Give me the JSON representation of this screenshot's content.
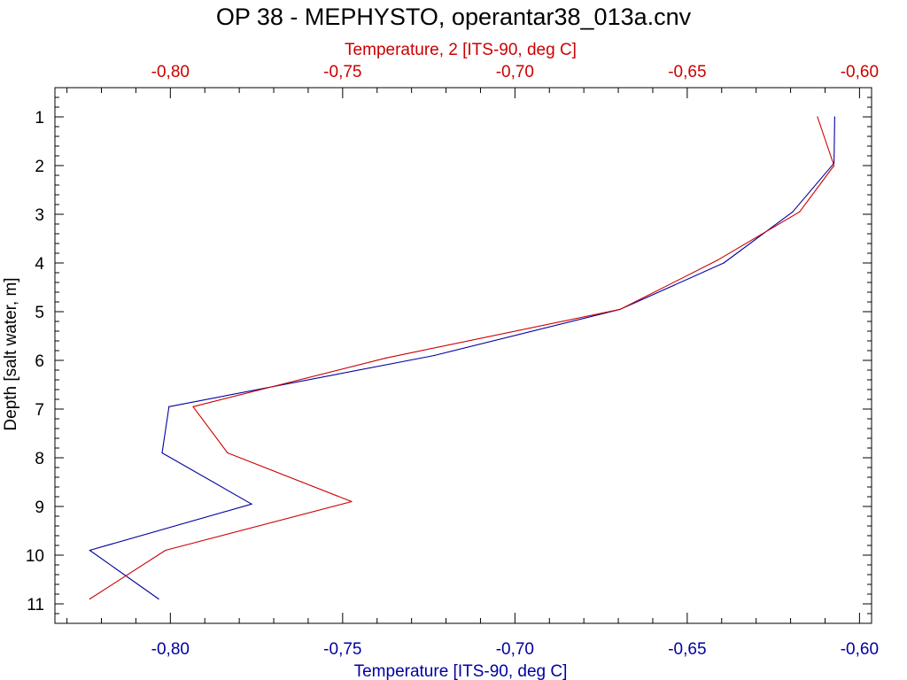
{
  "chart_data": {
    "type": "line",
    "title": "OP 38 - MEPHYSTO, operantar38_013a.cnv",
    "ylabel": "Depth [salt water, m]",
    "y_inverted": true,
    "ylim": [
      0.4,
      11.4
    ],
    "y_ticks": [
      1,
      2,
      3,
      4,
      5,
      6,
      7,
      8,
      9,
      10,
      11
    ],
    "x_bottom": {
      "label": "Temperature [ITS-90, deg C]",
      "color": "#0000a0",
      "lim": [
        -0.8335,
        -0.5965
      ],
      "ticks": [
        -0.8,
        -0.75,
        -0.7,
        -0.65,
        -0.6
      ],
      "tick_labels": [
        "-0,80",
        "-0,75",
        "-0,70",
        "-0,65",
        "-0,60"
      ]
    },
    "x_top": {
      "label": "Temperature, 2 [ITS-90, deg C]",
      "color": "#cc0000",
      "lim": [
        -0.8335,
        -0.5965
      ],
      "ticks": [
        -0.8,
        -0.75,
        -0.7,
        -0.65,
        -0.6
      ],
      "tick_labels": [
        "-0,80",
        "-0,75",
        "-0,70",
        "-0,65",
        "-0,60"
      ]
    },
    "grid": false,
    "legend": "none",
    "series": [
      {
        "axis": "bottom",
        "color": "#0000a0",
        "points": [
          {
            "x": -0.6072,
            "y": 1.0
          },
          {
            "x": -0.6074,
            "y": 1.95
          },
          {
            "x": -0.6194,
            "y": 2.95
          },
          {
            "x": -0.6394,
            "y": 4.0
          },
          {
            "x": -0.6694,
            "y": 4.95
          },
          {
            "x": -0.7234,
            "y": 5.9
          },
          {
            "x": -0.8004,
            "y": 6.95
          },
          {
            "x": -0.8024,
            "y": 7.9
          },
          {
            "x": -0.7764,
            "y": 8.95
          },
          {
            "x": -0.8234,
            "y": 9.9
          },
          {
            "x": -0.8034,
            "y": 10.9
          }
        ]
      },
      {
        "axis": "top",
        "color": "#cc0000",
        "points": [
          {
            "x": -0.6122,
            "y": 1.0
          },
          {
            "x": -0.6074,
            "y": 2.0
          },
          {
            "x": -0.6174,
            "y": 2.95
          },
          {
            "x": -0.6414,
            "y": 3.95
          },
          {
            "x": -0.6694,
            "y": 4.95
          },
          {
            "x": -0.7374,
            "y": 5.95
          },
          {
            "x": -0.7934,
            "y": 6.95
          },
          {
            "x": -0.7834,
            "y": 7.9
          },
          {
            "x": -0.7474,
            "y": 8.9
          },
          {
            "x": -0.8014,
            "y": 9.9
          },
          {
            "x": -0.8234,
            "y": 10.9
          }
        ]
      }
    ]
  }
}
